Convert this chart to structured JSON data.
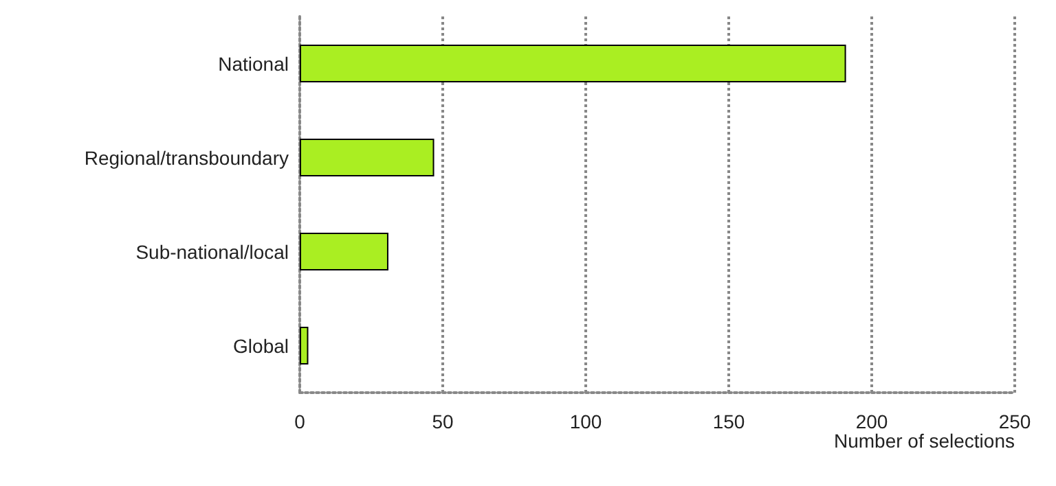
{
  "chart_data": {
    "type": "bar",
    "orientation": "horizontal",
    "categories": [
      "National",
      "Regional/transboundary",
      "Sub-national/local",
      "Global"
    ],
    "values": [
      191,
      47,
      31,
      3
    ],
    "color": "#aaee22",
    "xlabel": "Number of selections",
    "xlim": [
      0,
      250
    ],
    "xticks": [
      0,
      50,
      100,
      150,
      200,
      250
    ],
    "grid": "x"
  }
}
